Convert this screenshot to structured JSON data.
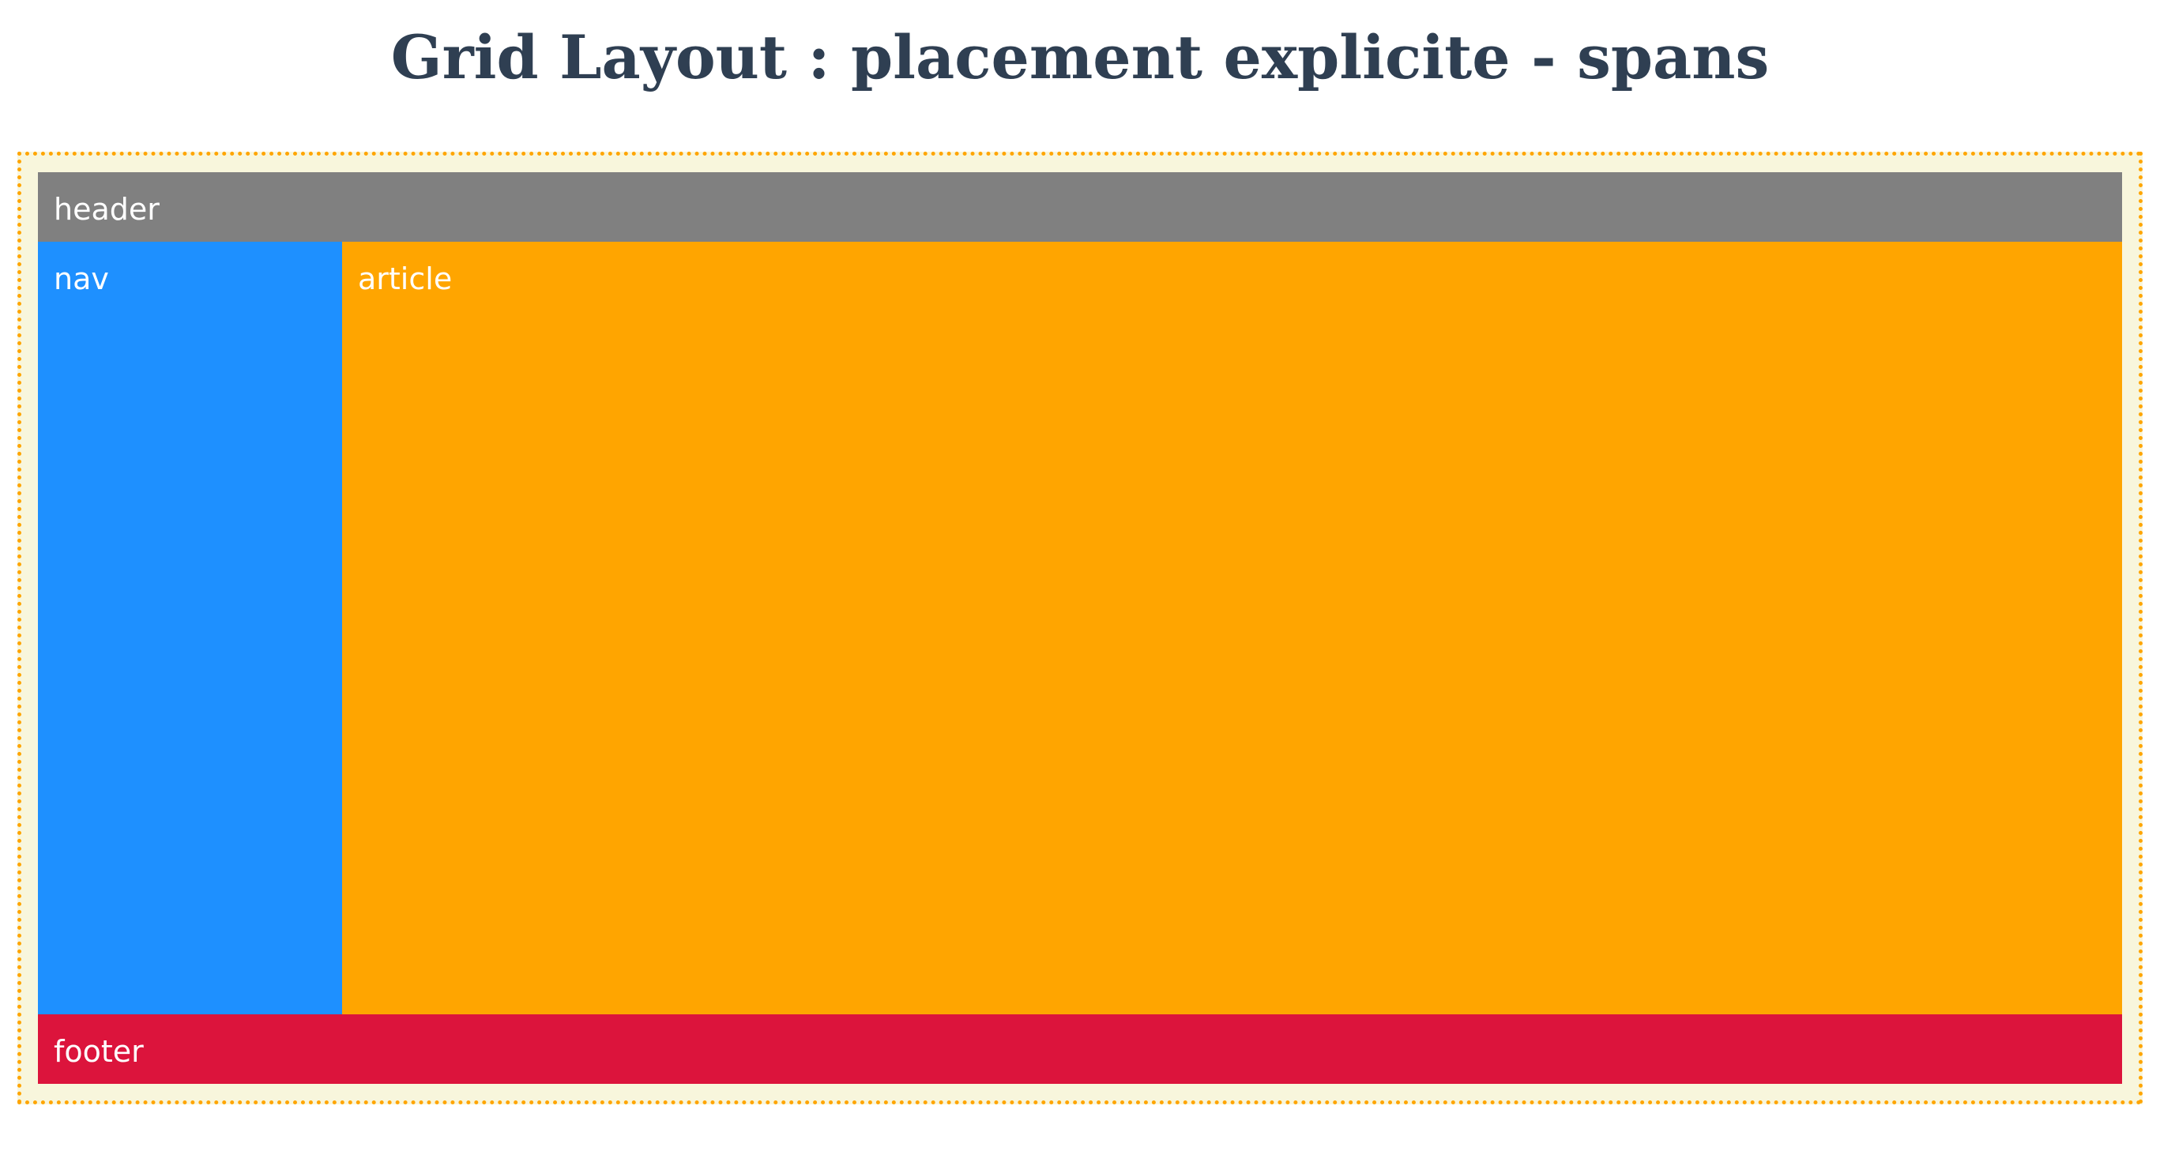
{
  "page": {
    "title": "Grid Layout : placement explicite - spans"
  },
  "grid": {
    "header_label": "header",
    "nav_label": "nav",
    "article_label": "article",
    "footer_label": "footer"
  },
  "colors": {
    "title": "#2f3f52",
    "container_border": "#ffa500",
    "container_background": "#f8f6dc",
    "header": "#808080",
    "nav": "#1e90ff",
    "article": "#ffa500",
    "footer": "#dc143c",
    "cell_text": "#ffffff"
  }
}
